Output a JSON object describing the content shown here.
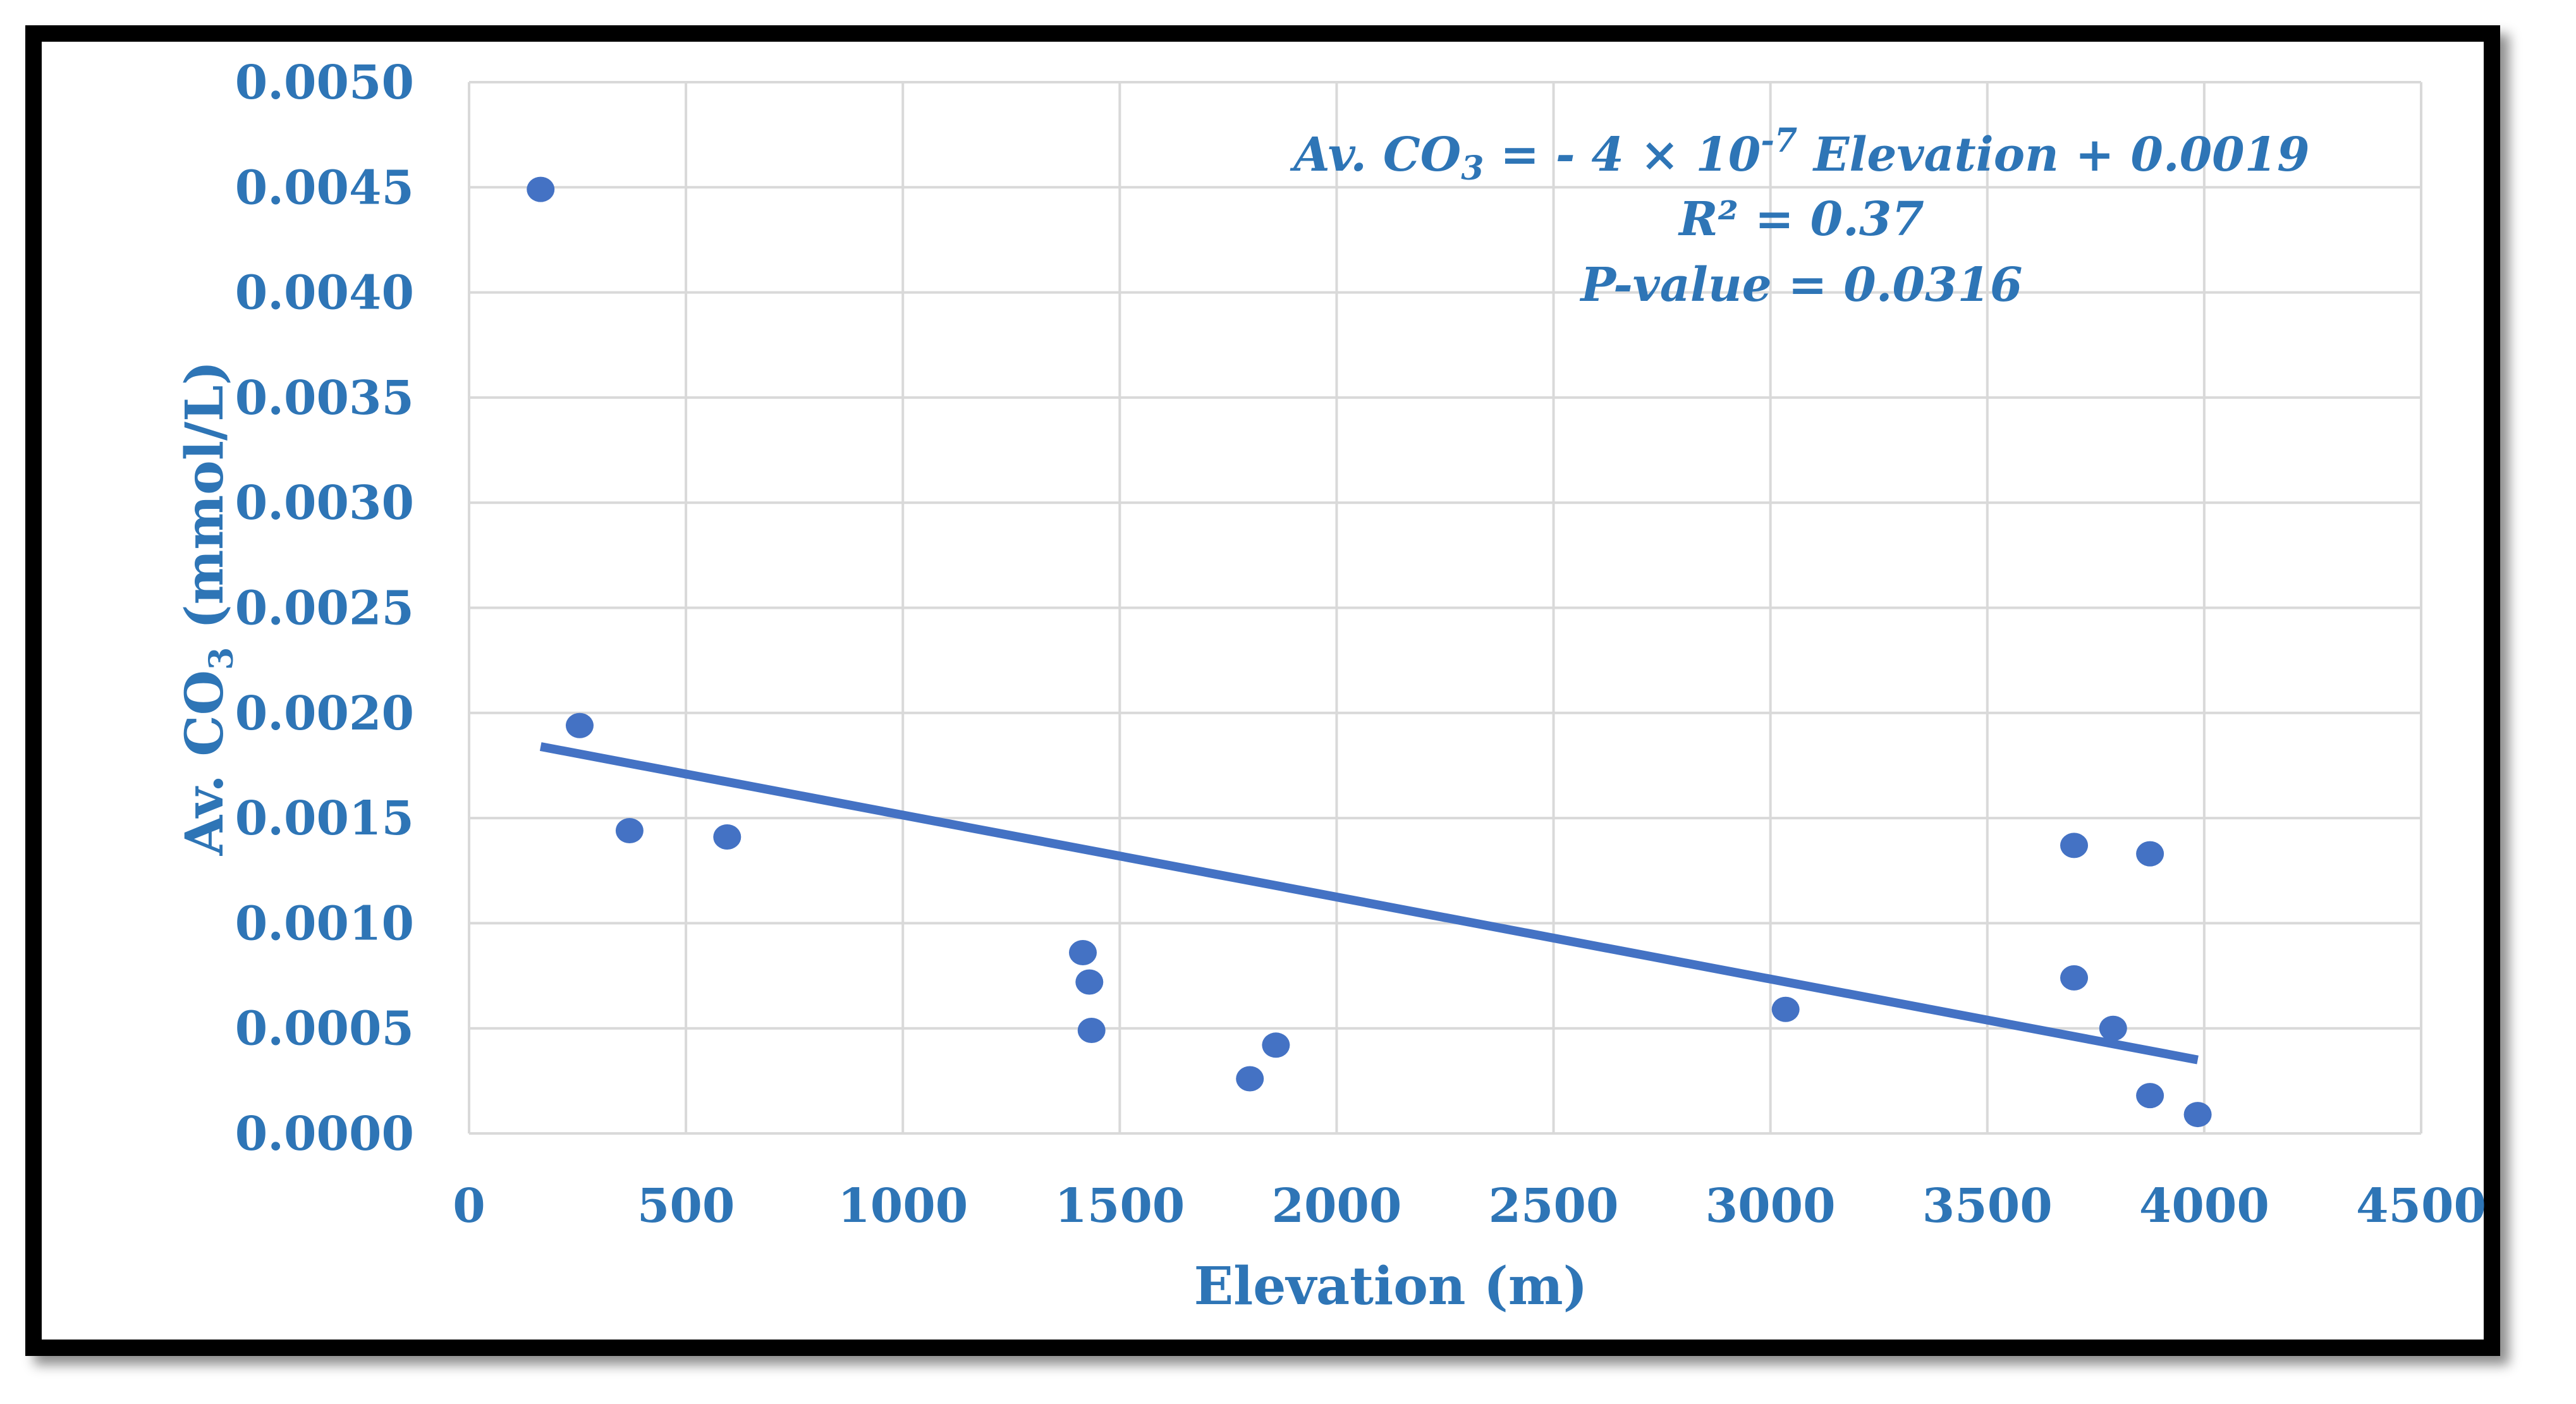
{
  "chart_data": {
    "type": "scatter",
    "title": "",
    "xlabel": "Elevation (m)",
    "ylabel": {
      "prefix": "Av. CO",
      "subscript": "3",
      "suffix": " (mmol/L)"
    },
    "xlim": [
      0,
      4500
    ],
    "ylim": [
      0,
      0.005
    ],
    "x_ticks": [
      "0",
      "500",
      "1000",
      "1500",
      "2000",
      "2500",
      "3000",
      "3500",
      "4000",
      "4500"
    ],
    "y_ticks": [
      "0.0000",
      "0.0005",
      "0.0010",
      "0.0015",
      "0.0020",
      "0.0025",
      "0.0030",
      "0.0035",
      "0.0040",
      "0.0045",
      "0.0050"
    ],
    "grid": true,
    "colors": {
      "marker": "#4472C4",
      "trendline": "#4472C4",
      "text": "#2E75B6"
    },
    "series": [
      {
        "name": "Av. CO3",
        "x": [
          165,
          255,
          370,
          595,
          1415,
          1430,
          1435,
          1800,
          1860,
          3035,
          3700,
          3700,
          3790,
          3875,
          3875,
          3985
        ],
        "y": [
          0.00449,
          0.00194,
          0.00144,
          0.00141,
          0.00086,
          0.00072,
          0.00049,
          0.00026,
          0.00042,
          0.00059,
          0.00137,
          0.00074,
          0.0005,
          0.00133,
          0.00018,
          9e-05
        ]
      }
    ],
    "trendline": {
      "type": "linear",
      "x": [
        165,
        3985
      ],
      "y": [
        0.00184,
        0.00035
      ]
    },
    "annotations": {
      "equation": {
        "lhs": "Av. CO",
        "lhs_sub": "3",
        "mid": " = - 4 × 10",
        "exp": "-7",
        "rhs": " Elevation + 0.0019"
      },
      "r2": "R² = 0.37",
      "pvalue": "P-value = 0.0316"
    }
  }
}
